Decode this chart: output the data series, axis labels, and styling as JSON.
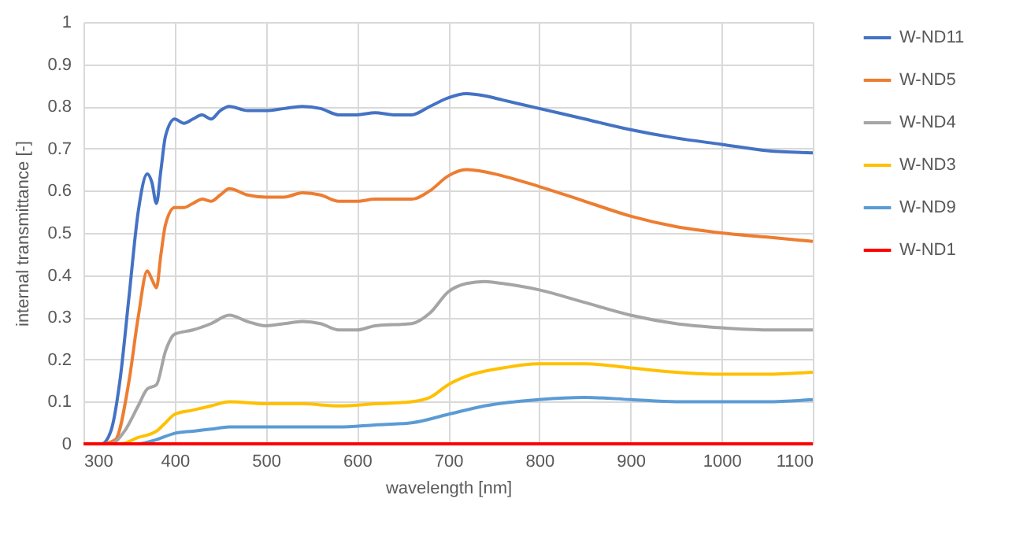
{
  "chart_data": {
    "type": "line",
    "xlabel": "wavelength [nm]",
    "ylabel": "internal transmittance [-]",
    "xlim": [
      300,
      1100
    ],
    "xticks": [
      300,
      400,
      500,
      600,
      700,
      800,
      900,
      1000,
      1100
    ],
    "ylim": [
      0,
      1
    ],
    "yticks": [
      0,
      0.1,
      0.2,
      0.3,
      0.4,
      0.5,
      0.6,
      0.7,
      0.8,
      0.9,
      1
    ],
    "grid": true,
    "legend": "right",
    "marker": "none",
    "line_style": "solid",
    "series": [
      {
        "name": "W-ND11",
        "color": "#4472c4",
        "x": [
          300,
          320,
          330,
          340,
          350,
          360,
          370,
          375,
          380,
          385,
          390,
          400,
          410,
          420,
          430,
          440,
          450,
          460,
          480,
          500,
          520,
          540,
          560,
          580,
          600,
          620,
          640,
          660,
          680,
          700,
          720,
          740,
          760,
          800,
          850,
          900,
          950,
          1000,
          1050,
          1100
        ],
        "values": [
          0,
          0,
          0.03,
          0.15,
          0.35,
          0.55,
          0.64,
          0.62,
          0.57,
          0.65,
          0.73,
          0.77,
          0.76,
          0.77,
          0.78,
          0.77,
          0.79,
          0.8,
          0.79,
          0.79,
          0.795,
          0.8,
          0.795,
          0.78,
          0.78,
          0.785,
          0.78,
          0.78,
          0.8,
          0.82,
          0.83,
          0.825,
          0.815,
          0.795,
          0.77,
          0.745,
          0.725,
          0.71,
          0.695,
          0.69
        ]
      },
      {
        "name": "W-ND5",
        "color": "#ed7d31",
        "x": [
          300,
          320,
          335,
          350,
          360,
          370,
          375,
          380,
          385,
          390,
          400,
          410,
          420,
          430,
          440,
          450,
          460,
          480,
          500,
          520,
          540,
          560,
          580,
          600,
          620,
          660,
          680,
          700,
          720,
          740,
          760,
          800,
          850,
          900,
          950,
          1000,
          1050,
          1100
        ],
        "values": [
          0,
          0,
          0.01,
          0.15,
          0.3,
          0.41,
          0.39,
          0.37,
          0.45,
          0.52,
          0.56,
          0.56,
          0.57,
          0.58,
          0.575,
          0.59,
          0.605,
          0.59,
          0.585,
          0.585,
          0.595,
          0.59,
          0.575,
          0.575,
          0.58,
          0.58,
          0.6,
          0.635,
          0.65,
          0.645,
          0.635,
          0.61,
          0.575,
          0.54,
          0.515,
          0.5,
          0.49,
          0.48
        ]
      },
      {
        "name": "W-ND4",
        "color": "#a5a5a5",
        "x": [
          300,
          330,
          345,
          360,
          370,
          380,
          390,
          400,
          420,
          440,
          460,
          480,
          500,
          520,
          540,
          560,
          580,
          600,
          620,
          660,
          680,
          700,
          720,
          740,
          760,
          800,
          850,
          900,
          950,
          1000,
          1050,
          1100
        ],
        "values": [
          0,
          0,
          0.03,
          0.09,
          0.13,
          0.14,
          0.22,
          0.26,
          0.27,
          0.285,
          0.305,
          0.29,
          0.28,
          0.285,
          0.29,
          0.285,
          0.27,
          0.27,
          0.28,
          0.285,
          0.31,
          0.36,
          0.38,
          0.385,
          0.38,
          0.365,
          0.335,
          0.305,
          0.285,
          0.275,
          0.27,
          0.27
        ]
      },
      {
        "name": "W-ND3",
        "color": "#ffc000",
        "x": [
          300,
          340,
          360,
          380,
          390,
          400,
          420,
          440,
          460,
          500,
          540,
          580,
          620,
          660,
          680,
          700,
          720,
          760,
          800,
          850,
          900,
          950,
          1000,
          1050,
          1100
        ],
        "values": [
          0,
          0,
          0.015,
          0.03,
          0.05,
          0.07,
          0.08,
          0.09,
          0.1,
          0.095,
          0.095,
          0.09,
          0.095,
          0.1,
          0.11,
          0.14,
          0.16,
          0.18,
          0.19,
          0.19,
          0.18,
          0.17,
          0.165,
          0.165,
          0.17
        ]
      },
      {
        "name": "W-ND9",
        "color": "#5b9bd5",
        "x": [
          300,
          360,
          380,
          400,
          420,
          440,
          460,
          500,
          540,
          580,
          620,
          660,
          700,
          740,
          800,
          850,
          900,
          950,
          1000,
          1050,
          1100
        ],
        "values": [
          0,
          0,
          0.01,
          0.025,
          0.03,
          0.035,
          0.04,
          0.04,
          0.04,
          0.04,
          0.045,
          0.05,
          0.07,
          0.09,
          0.105,
          0.11,
          0.105,
          0.1,
          0.1,
          0.1,
          0.105
        ]
      },
      {
        "name": "W-ND1",
        "color": "#ff0000",
        "x": [
          300,
          500,
          700,
          900,
          1100
        ],
        "values": [
          0,
          0,
          0,
          0,
          0
        ]
      }
    ]
  }
}
